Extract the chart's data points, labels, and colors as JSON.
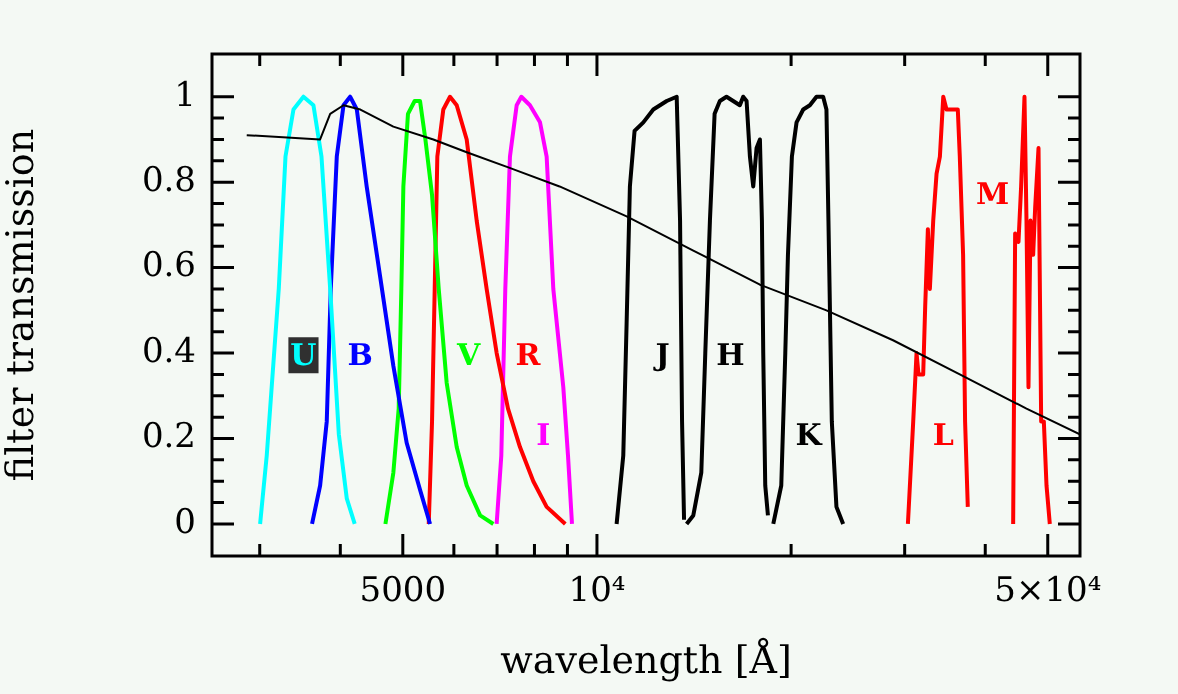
{
  "chart_data": {
    "type": "line",
    "xlabel": "wavelength [Å]",
    "ylabel": "filter transmission",
    "log": "x",
    "grid": false,
    "line_style": "solid",
    "xlim": [
      2530,
      56100
    ],
    "ylim": [
      -0.075,
      1.1
    ],
    "xticks": [
      {
        "value": 3000,
        "label": null
      },
      {
        "value": 4000,
        "label": null
      },
      5000,
      {
        "value": 6000,
        "label": null
      },
      {
        "value": 7000,
        "label": null
      },
      {
        "value": 8000,
        "label": null
      },
      {
        "value": 9000,
        "label": null
      },
      {
        "value": 10000,
        "label": "10⁴"
      },
      {
        "value": 20000,
        "label": null
      },
      {
        "value": 30000,
        "label": null
      },
      {
        "value": 40000,
        "label": null
      },
      {
        "value": 50000,
        "label": "5×10⁴"
      }
    ],
    "yticks": [
      0,
      {
        "value": 0.05,
        "label": null
      },
      {
        "value": 0.1,
        "label": null
      },
      {
        "value": 0.15,
        "label": null
      },
      0.2,
      {
        "value": 0.25,
        "label": null
      },
      {
        "value": 0.3,
        "label": null
      },
      {
        "value": 0.35,
        "label": null
      },
      0.4,
      {
        "value": 0.45,
        "label": null
      },
      {
        "value": 0.5,
        "label": null
      },
      {
        "value": 0.55,
        "label": null
      },
      0.6,
      {
        "value": 0.65,
        "label": null
      },
      {
        "value": 0.7,
        "label": null
      },
      {
        "value": 0.75,
        "label": null
      },
      0.8,
      {
        "value": 0.85,
        "label": null
      },
      {
        "value": 0.9,
        "label": null
      },
      {
        "value": 0.95,
        "label": null
      },
      1
    ],
    "series": [
      {
        "color": "#000000",
        "x": [
          2864,
          3722,
          3858,
          4046,
          4297,
          4834,
          5576,
          6281,
          7427,
          8750,
          11117,
          14105,
          17893,
          22689,
          28779,
          36524,
          46343,
          56070
        ],
        "values": [
          0.91,
          0.9,
          0.96,
          0.98,
          0.97,
          0.93,
          0.9,
          0.87,
          0.83,
          0.79,
          0.72,
          0.64,
          0.56,
          0.5,
          0.43,
          0.35,
          0.27,
          0.21
        ]
      },
      {
        "name": "U",
        "color": "#00ffff",
        "x": [
          3004,
          3076,
          3211,
          3289,
          3384,
          3507,
          3634,
          3740,
          3858,
          3979,
          4093,
          4211
        ],
        "values": [
          0,
          0.16,
          0.55,
          0.86,
          0.97,
          1.0,
          0.98,
          0.86,
          0.55,
          0.21,
          0.06,
          0
        ]
      },
      {
        "name": "B",
        "color": "#0000ff",
        "x": [
          3616,
          3722,
          3811,
          3866,
          3950,
          4046,
          4143,
          4243,
          4395,
          4610,
          4834,
          5069,
          5317,
          5511
        ],
        "values": [
          0,
          0.09,
          0.24,
          0.55,
          0.86,
          0.98,
          1.0,
          0.97,
          0.79,
          0.58,
          0.37,
          0.19,
          0.08,
          0
        ]
      },
      {
        "name": "V",
        "color": "#00ff00",
        "x": [
          4699,
          4834,
          4927,
          4974,
          5010,
          5093,
          5216,
          5317,
          5420,
          5550,
          5684,
          5848,
          6061,
          6281,
          6589,
          6908
        ],
        "values": [
          0,
          0.12,
          0.27,
          0.55,
          0.79,
          0.96,
          0.99,
          0.99,
          0.9,
          0.77,
          0.55,
          0.33,
          0.18,
          0.09,
          0.02,
          0
        ]
      },
      {
        "name": "R",
        "color": "#ff0000",
        "x": [
          5485,
          5550,
          5603,
          5656,
          5778,
          5918,
          6061,
          6281,
          6509,
          6745,
          6990,
          7279,
          7597,
          7967,
          8356,
          8931
        ],
        "values": [
          0,
          0.24,
          0.55,
          0.86,
          0.97,
          1.0,
          0.98,
          0.9,
          0.71,
          0.55,
          0.4,
          0.27,
          0.18,
          0.1,
          0.04,
          0
        ]
      },
      {
        "name": "I",
        "color": "#ff00ff",
        "x": [
          6990,
          7107,
          7209,
          7330,
          7508,
          7634,
          7872,
          8160,
          8356,
          8557,
          8868,
          9018,
          9147
        ],
        "values": [
          0,
          0.16,
          0.55,
          0.86,
          0.98,
          1.0,
          0.98,
          0.94,
          0.86,
          0.55,
          0.32,
          0.16,
          0
        ]
      },
      {
        "name": "J",
        "color": "#000000",
        "x": [
          10727,
          10985,
          11117,
          11248,
          11437,
          11801,
          12228,
          12827,
          13293,
          13454,
          13550,
          13647
        ],
        "values": [
          0,
          0.16,
          0.47,
          0.79,
          0.92,
          0.94,
          0.97,
          0.99,
          1.0,
          0.71,
          0.24,
          0.01
        ]
      },
      {
        "name": "H",
        "color": "#000000",
        "x": [
          13772,
          14105,
          14514,
          14722,
          14968,
          15220,
          15508,
          15880,
          16264,
          16655,
          16855,
          17061,
          17265,
          17472,
          17680,
          17893,
          18021,
          18106,
          18236,
          18412
        ],
        "values": [
          0,
          0.02,
          0.12,
          0.4,
          0.71,
          0.96,
          0.99,
          1.0,
          0.99,
          0.98,
          1.0,
          0.99,
          0.86,
          0.79,
          0.88,
          0.9,
          0.71,
          0.4,
          0.09,
          0.02
        ]
      },
      {
        "name": "K",
        "color": "#000000",
        "x": [
          18767,
          19310,
          19589,
          19776,
          20057,
          20393,
          20883,
          21385,
          21898,
          22424,
          22689,
          22852,
          23128,
          23514,
          24084
        ],
        "values": [
          0,
          0.09,
          0.4,
          0.63,
          0.86,
          0.94,
          0.97,
          0.98,
          1.0,
          1.0,
          0.97,
          0.71,
          0.24,
          0.04,
          0
        ]
      },
      {
        "name": "L",
        "color": "#ff0000",
        "x": [
          30348,
          30929,
          31298,
          31522,
          32051,
          32281,
          32591,
          32823,
          33219,
          33617,
          34019,
          34432,
          34832,
          35251,
          35668,
          36266,
          36524,
          36958,
          37221,
          37583
        ],
        "values": [
          0,
          0.24,
          0.4,
          0.35,
          0.35,
          0.51,
          0.69,
          0.55,
          0.71,
          0.82,
          0.86,
          1.0,
          0.97,
          0.97,
          0.97,
          0.97,
          0.86,
          0.63,
          0.24,
          0.04
        ]
      },
      {
        "name": "M",
        "color": "#ff0000",
        "x": [
          44189,
          44504,
          45038,
          45466,
          46013,
          46343,
          46676,
          47013,
          47460,
          47800,
          48377,
          48837,
          49304,
          49779,
          50368
        ],
        "values": [
          0,
          0.68,
          0.66,
          0.79,
          1.0,
          0.71,
          0.32,
          0.71,
          0.63,
          0.74,
          0.88,
          0.24,
          0.24,
          0.09,
          0
        ]
      }
    ]
  }
}
